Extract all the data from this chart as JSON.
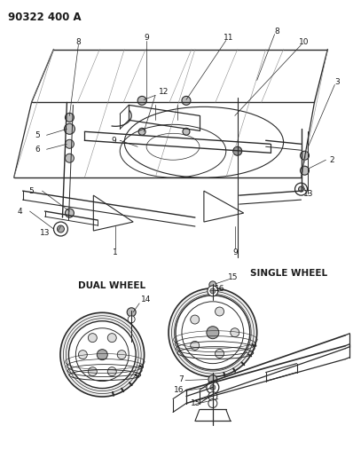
{
  "title": "90322 400 A",
  "bg_color": "#ffffff",
  "line_color": "#2a2a2a",
  "text_color": "#1a1a1a",
  "label_fontsize": 6.5,
  "title_fontsize": 8.5
}
